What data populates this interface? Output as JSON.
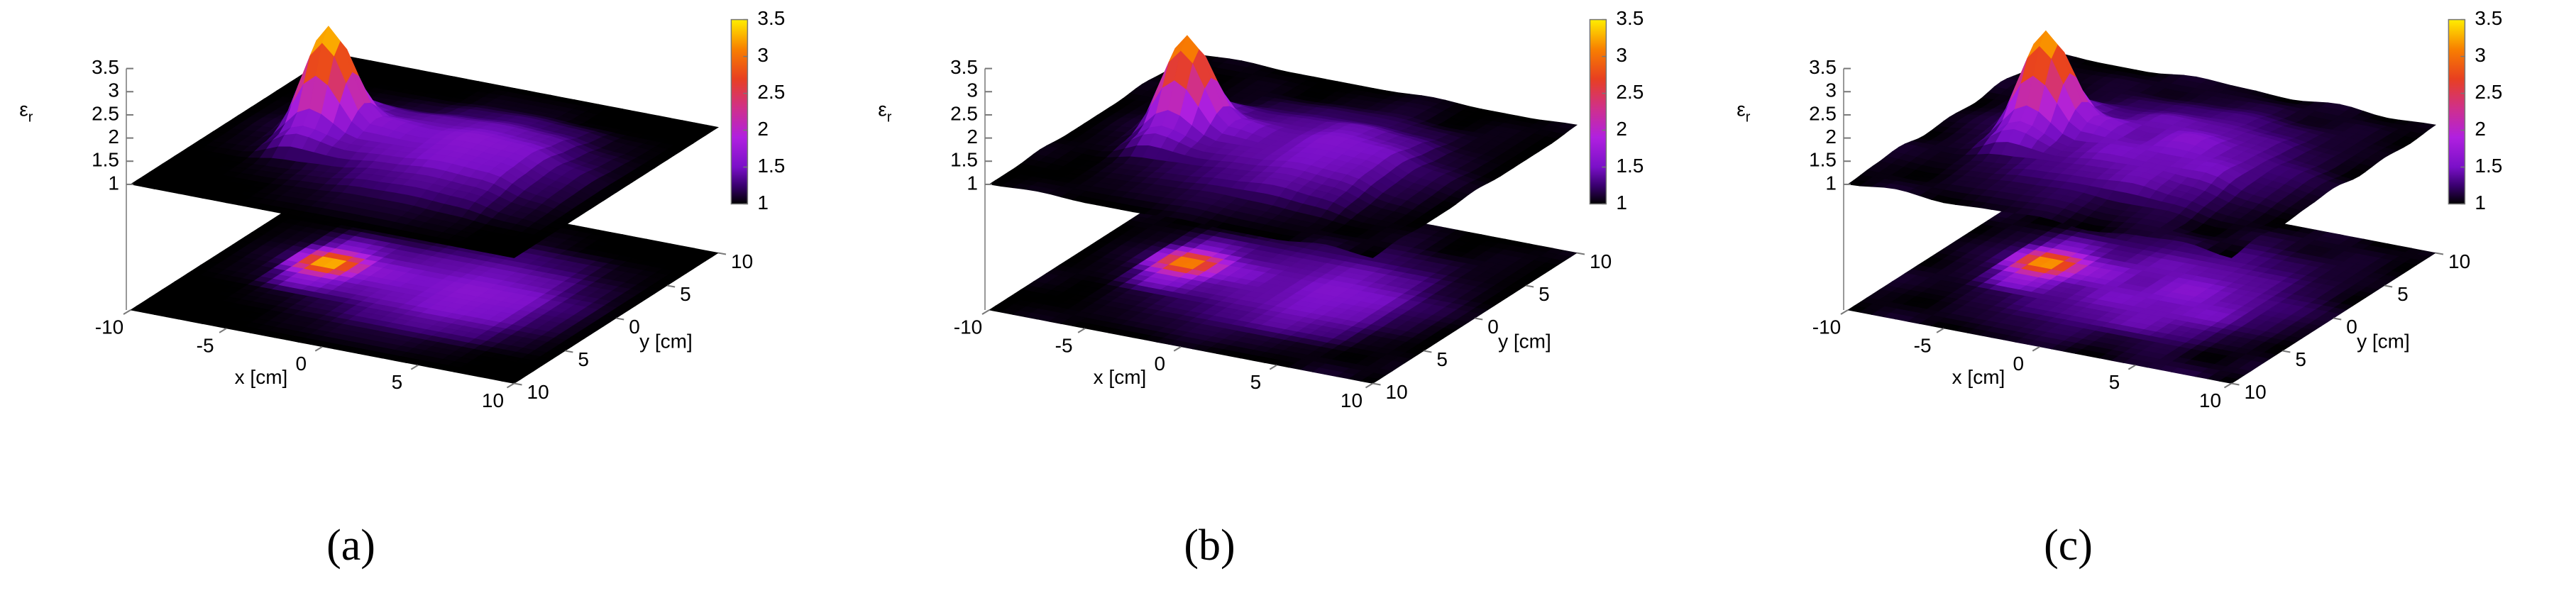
{
  "chart_data": [
    {
      "type": "surface3d",
      "caption": "(a)",
      "xlabel": "x [cm]",
      "ylabel": "y [cm]",
      "zlabel": "ε",
      "zlabel_subscript": "r",
      "x": [
        -10,
        -7.5,
        -5,
        -2.5,
        0,
        2.5,
        5,
        7.5,
        10
      ],
      "y": [
        -10,
        -7.5,
        -5,
        -2.5,
        0,
        2.5,
        5,
        7.5,
        10
      ],
      "z": [
        [
          1,
          1,
          1,
          1,
          1,
          1,
          1,
          1,
          1
        ],
        [
          1,
          1,
          1,
          1.05,
          1.1,
          1.1,
          1.05,
          1,
          1
        ],
        [
          1,
          1,
          1.05,
          1.15,
          1.3,
          1.35,
          1.3,
          1.1,
          1
        ],
        [
          1,
          1.05,
          1.6,
          1.4,
          1.45,
          1.55,
          1.5,
          1.2,
          1
        ],
        [
          1,
          1.1,
          3.4,
          1.6,
          1.5,
          1.6,
          1.55,
          1.25,
          1
        ],
        [
          1,
          1.05,
          1.5,
          1.35,
          1.4,
          1.45,
          1.4,
          1.15,
          1
        ],
        [
          1,
          1,
          1.05,
          1.1,
          1.2,
          1.25,
          1.2,
          1.05,
          1
        ],
        [
          1,
          1,
          1,
          1,
          1.05,
          1.05,
          1,
          1,
          1
        ],
        [
          1,
          1,
          1,
          1,
          1,
          1,
          1,
          1,
          1
        ]
      ],
      "xlim": [
        -10,
        10
      ],
      "ylim": [
        -10,
        10
      ],
      "zlim": [
        1,
        3.5
      ],
      "xticks": [
        -10,
        -5,
        0,
        5,
        10
      ],
      "yticks": [
        {
          "value": -10,
          "label": "10"
        },
        {
          "value": -5,
          "label": "5"
        },
        0,
        5,
        10
      ],
      "zticks": [
        1,
        1.5,
        2,
        2.5,
        3,
        3.5
      ],
      "clim": [
        1,
        3.5
      ],
      "cticks": [
        1,
        1.5,
        2,
        2.5,
        3,
        3.5
      ],
      "colormap": [
        {
          "value": 1,
          "color": "#000000"
        },
        {
          "value": 1.25,
          "color": "#3a0070"
        },
        {
          "value": 1.5,
          "color": "#7a10c8"
        },
        {
          "value": 1.9,
          "color": "#b020e0"
        },
        {
          "value": 2.3,
          "color": "#d0308a"
        },
        {
          "value": 2.7,
          "color": "#e84020"
        },
        {
          "value": 3.1,
          "color": "#f88000"
        },
        {
          "value": 3.5,
          "color": "#ffee00"
        }
      ]
    },
    {
      "type": "surface3d",
      "caption": "(b)",
      "xlabel": "x [cm]",
      "ylabel": "y [cm]",
      "zlabel": "ε",
      "zlabel_subscript": "r",
      "x": [
        -10,
        -7.5,
        -5,
        -2.5,
        0,
        2.5,
        5,
        7.5,
        10
      ],
      "y": [
        -10,
        -7.5,
        -5,
        -2.5,
        0,
        2.5,
        5,
        7.5,
        10
      ],
      "z": [
        [
          1,
          1.05,
          1,
          1,
          1.05,
          1,
          1,
          1.1,
          1
        ],
        [
          1,
          1,
          1.05,
          1.1,
          1.15,
          1.1,
          1.05,
          1,
          1.05
        ],
        [
          1.05,
          1,
          1.1,
          1.2,
          1.3,
          1.4,
          1.3,
          1.05,
          1
        ],
        [
          1,
          1.05,
          1.6,
          1.35,
          1.4,
          1.5,
          1.45,
          1.15,
          1
        ],
        [
          1,
          1.1,
          3.2,
          1.55,
          1.4,
          1.55,
          1.5,
          1.2,
          1.05
        ],
        [
          1,
          1.05,
          1.45,
          1.3,
          1.35,
          1.45,
          1.35,
          1.1,
          1
        ],
        [
          1.05,
          1,
          1.05,
          1.15,
          1.2,
          1.2,
          1.15,
          1.05,
          1
        ],
        [
          1,
          1,
          1.05,
          1,
          1.05,
          1.1,
          1,
          1.05,
          1
        ],
        [
          1,
          1.05,
          1,
          1,
          1,
          1.05,
          1,
          1,
          1.05
        ]
      ],
      "xlim": [
        -10,
        10
      ],
      "ylim": [
        -10,
        10
      ],
      "zlim": [
        1,
        3.5
      ],
      "xticks": [
        -10,
        -5,
        0,
        5,
        10
      ],
      "yticks": [
        {
          "value": -10,
          "label": "10"
        },
        {
          "value": -5,
          "label": "5"
        },
        0,
        5,
        10
      ],
      "zticks": [
        1,
        1.5,
        2,
        2.5,
        3,
        3.5
      ],
      "clim": [
        1,
        3.5
      ],
      "cticks": [
        1,
        1.5,
        2,
        2.5,
        3,
        3.5
      ],
      "colormap": [
        {
          "value": 1,
          "color": "#000000"
        },
        {
          "value": 1.25,
          "color": "#3a0070"
        },
        {
          "value": 1.5,
          "color": "#7a10c8"
        },
        {
          "value": 1.9,
          "color": "#b020e0"
        },
        {
          "value": 2.3,
          "color": "#d0308a"
        },
        {
          "value": 2.7,
          "color": "#e84020"
        },
        {
          "value": 3.1,
          "color": "#f88000"
        },
        {
          "value": 3.5,
          "color": "#ffee00"
        }
      ]
    },
    {
      "type": "surface3d",
      "caption": "(c)",
      "xlabel": "x [cm]",
      "ylabel": "y [cm]",
      "zlabel": "ε",
      "zlabel_subscript": "r",
      "x": [
        -10,
        -7.5,
        -5,
        -2.5,
        0,
        2.5,
        5,
        7.5,
        10
      ],
      "y": [
        -10,
        -7.5,
        -5,
        -2.5,
        0,
        2.5,
        5,
        7.5,
        10
      ],
      "z": [
        [
          1,
          1.1,
          1,
          1.05,
          1.1,
          1,
          1.1,
          1.15,
          1
        ],
        [
          1.05,
          1,
          1.1,
          1.15,
          1.2,
          1.1,
          1.15,
          1,
          1.1
        ],
        [
          1.1,
          1.05,
          1.15,
          1.3,
          1.35,
          1.45,
          1.3,
          1.1,
          1
        ],
        [
          1,
          1.1,
          1.7,
          1.35,
          1.5,
          1.45,
          1.5,
          1.2,
          1.05
        ],
        [
          1.05,
          1.15,
          3.3,
          1.65,
          1.4,
          1.6,
          1.4,
          1.25,
          1.1
        ],
        [
          1,
          1.1,
          1.5,
          1.3,
          1.45,
          1.4,
          1.35,
          1.15,
          1
        ],
        [
          1.1,
          1,
          1.1,
          1.2,
          1.25,
          1.3,
          1.2,
          1.1,
          1.05
        ],
        [
          1,
          1.05,
          1.1,
          1.05,
          1.1,
          1.15,
          1.05,
          1.1,
          1
        ],
        [
          1.05,
          1,
          1,
          1.1,
          1.05,
          1,
          1.1,
          1,
          1.05
        ]
      ],
      "xlim": [
        -10,
        10
      ],
      "ylim": [
        -10,
        10
      ],
      "zlim": [
        1,
        3.5
      ],
      "xticks": [
        -10,
        -5,
        0,
        5,
        10
      ],
      "yticks": [
        {
          "value": -10,
          "label": "10"
        },
        {
          "value": -5,
          "label": "5"
        },
        0,
        5,
        10
      ],
      "zticks": [
        1,
        1.5,
        2,
        2.5,
        3,
        3.5
      ],
      "clim": [
        1,
        3.5
      ],
      "cticks": [
        1,
        1.5,
        2,
        2.5,
        3,
        3.5
      ],
      "colormap": [
        {
          "value": 1,
          "color": "#000000"
        },
        {
          "value": 1.25,
          "color": "#3a0070"
        },
        {
          "value": 1.5,
          "color": "#7a10c8"
        },
        {
          "value": 1.9,
          "color": "#b020e0"
        },
        {
          "value": 2.3,
          "color": "#d0308a"
        },
        {
          "value": 2.7,
          "color": "#e84020"
        },
        {
          "value": 3.1,
          "color": "#f88000"
        },
        {
          "value": 3.5,
          "color": "#ffee00"
        }
      ]
    }
  ]
}
